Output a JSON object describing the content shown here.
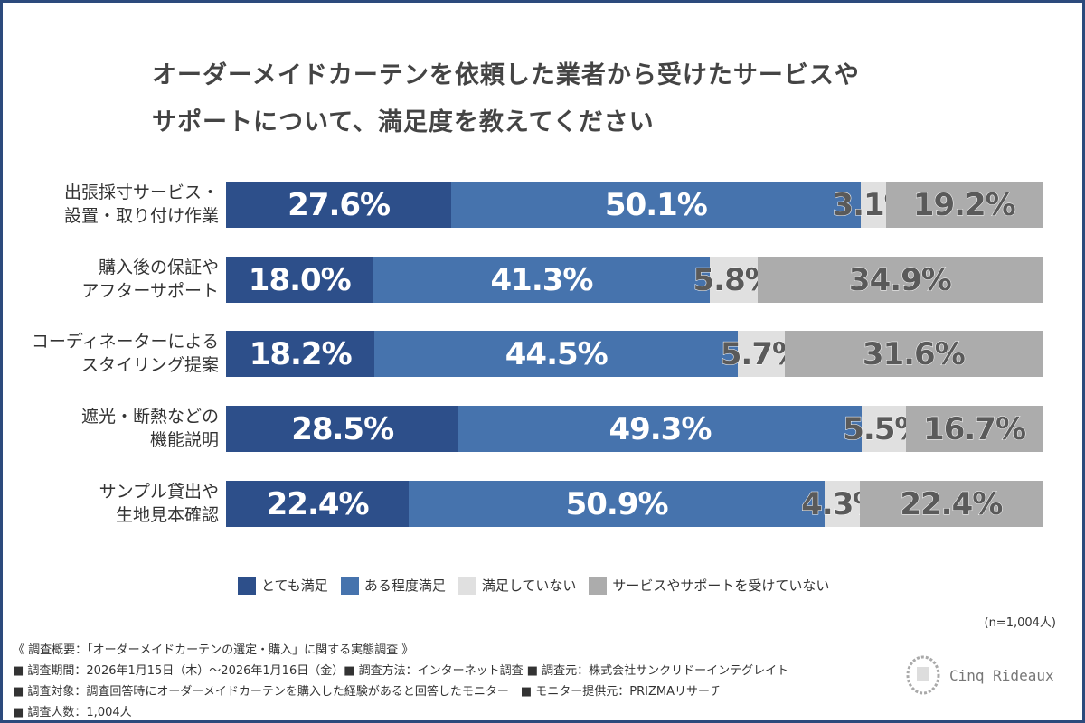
{
  "chart_data": {
    "type": "bar",
    "orientation": "horizontal-stacked-100",
    "title": "オーダーメイドカーテンを依頼した業者から受けたサービスやサポートについて、満足度を教えてください",
    "title_lines": [
      "オーダーメイドカーテンを依頼した業者から受けたサービスや",
      "サポートについて、満足度を教えてください"
    ],
    "categories": [
      [
        "出張採寸サービス・",
        "設置・取り付け作業"
      ],
      [
        "購入後の保証や",
        "アフターサポート"
      ],
      [
        "コーディネーターによる",
        "スタイリング提案"
      ],
      [
        "遮光・断熱などの",
        "機能説明"
      ],
      [
        "サンプル貸出や",
        "生地見本確認"
      ]
    ],
    "series": [
      {
        "name": "とても満足",
        "color": "#2d4f8a",
        "values": [
          27.6,
          18.0,
          18.2,
          28.5,
          22.4
        ],
        "labels": [
          "27.6%",
          "18.0%",
          "18.2%",
          "28.5%",
          "22.4%"
        ]
      },
      {
        "name": "ある程度満足",
        "color": "#4673ad",
        "values": [
          50.1,
          41.3,
          44.5,
          49.3,
          50.9
        ],
        "labels": [
          "50.1%",
          "41.3%",
          "44.5%",
          "49.3%",
          "50.9%"
        ]
      },
      {
        "name": "満足していない",
        "color": "#e0e0e0",
        "values": [
          3.1,
          5.8,
          5.7,
          5.5,
          4.3
        ],
        "labels": [
          "3.1%",
          "5.8%",
          "5.7%",
          "5.5%",
          "4.3%"
        ]
      },
      {
        "name": "サービスやサポートを受けていない",
        "color": "#acacac",
        "values": [
          19.2,
          34.9,
          31.6,
          16.7,
          22.4
        ],
        "labels": [
          "19.2%",
          "34.9%",
          "31.6%",
          "16.7%",
          "22.4%"
        ]
      }
    ],
    "legend_position": "bottom",
    "grid": false
  },
  "n_note": "(n=1,004人)",
  "footer": [
    "《 調査概要：「オーダーメイドカーテンの選定・購入」に関する実態調査 》",
    "■ 調査期間：2026年1月15日（木）～2026年1月16日（金）■ 調査方法：インターネット調査 ■ 調査元：株式会社サンクリドーインテグレイト",
    "■ 調査対象：調査回答時にオーダーメイドカーテンを購入した経験があると回答したモニター　■ モニター提供元：PRIZMAリサーチ",
    "■ 調査人数：1,004人"
  ],
  "logo_text": "Cinq Rideaux"
}
